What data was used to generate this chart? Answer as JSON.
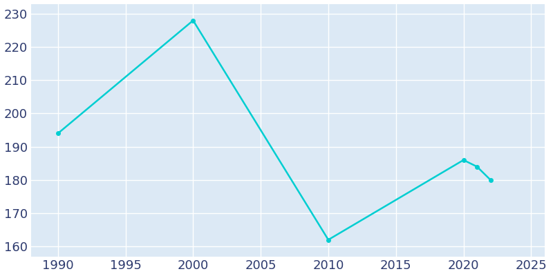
{
  "years": [
    1990,
    2000,
    2010,
    2020,
    2021,
    2022
  ],
  "population": [
    194,
    228,
    162,
    186,
    184,
    180
  ],
  "line_color": "#00CED1",
  "fig_bg_color": "#ffffff",
  "plot_bg_color": "#dce9f5",
  "grid_color": "#ffffff",
  "tick_color": "#2d3a6e",
  "xlim": [
    1988,
    2026
  ],
  "ylim": [
    157,
    233
  ],
  "xticks": [
    1990,
    1995,
    2000,
    2005,
    2010,
    2015,
    2020,
    2025
  ],
  "yticks": [
    160,
    170,
    180,
    190,
    200,
    210,
    220,
    230
  ],
  "linewidth": 1.8,
  "marker": "o",
  "markersize": 4,
  "tick_fontsize": 13
}
